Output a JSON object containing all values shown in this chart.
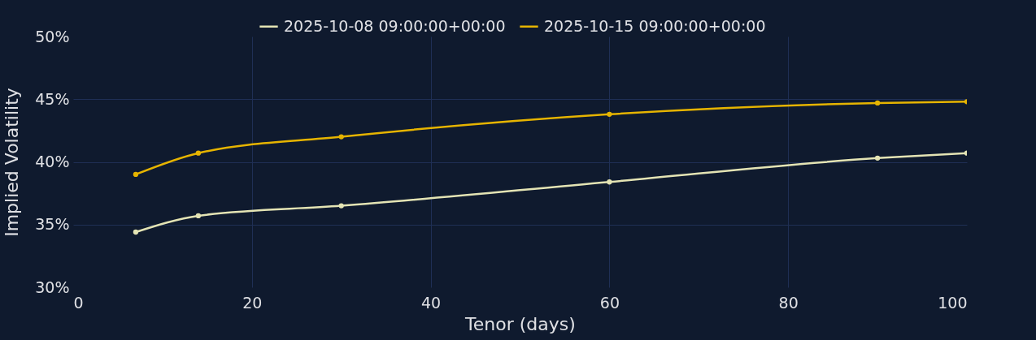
{
  "chart_data": {
    "type": "line",
    "xlabel": "Tenor (days)",
    "ylabel": "Implied Volatility",
    "x": [
      7,
      14,
      30,
      60,
      90,
      100
    ],
    "series": [
      {
        "name": "2025-10-08 09:00:00+00:00",
        "color": "#e4e4b4",
        "values": [
          34.4,
          35.7,
          36.5,
          38.4,
          40.3,
          40.7
        ]
      },
      {
        "name": "2025-10-15 09:00:00+00:00",
        "color": "#e6b400",
        "values": [
          39.0,
          40.7,
          42.0,
          43.8,
          44.7,
          44.8
        ]
      }
    ],
    "xlim": [
      0,
      100
    ],
    "xticks": [
      0,
      20,
      40,
      60,
      80,
      100
    ],
    "ylim": [
      30,
      50
    ],
    "yticks": [
      {
        "value": 30,
        "label": "30%"
      },
      {
        "value": 35,
        "label": "35%"
      },
      {
        "value": 40,
        "label": "40%"
      },
      {
        "value": 45,
        "label": "45%"
      },
      {
        "value": 50,
        "label": "50%"
      }
    ],
    "grid": true,
    "legend": "top",
    "marker": "circle",
    "line_style": "solid"
  }
}
